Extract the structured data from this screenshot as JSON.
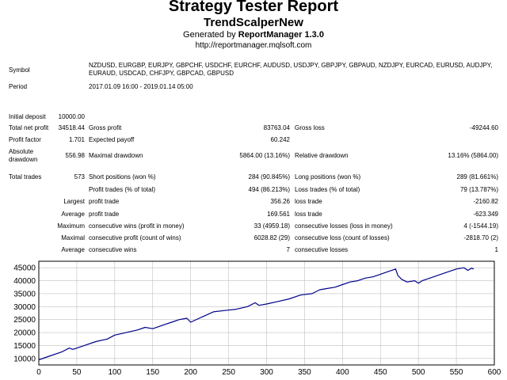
{
  "header": {
    "title": "Strategy Tester Report",
    "subtitle": "TrendScalperNew",
    "generated_prefix": "Generated by ",
    "generated_tool": "ReportManager 1.3.0",
    "url": "http://reportmanager.mqlsoft.com"
  },
  "info": {
    "symbol_label": "Symbol",
    "symbol_value": "NZDUSD, EURGBP, EURJPY, GBPCHF, USDCHF, EURCHF, AUDUSD, USDJPY, GBPJPY, GBPAUD, NZDJPY, EURCAD, EURUSD, AUDJPY, EURAUD, USDCAD, CHFJPY, GBPCAD, GBPUSD",
    "period_label": "Period",
    "period_value": "2017.01.09 16:00 - 2019.01.14 05:00"
  },
  "stats": {
    "initial_deposit_label": "Initial deposit",
    "initial_deposit": "10000.00",
    "total_net_profit_label": "Total net profit",
    "total_net_profit": "34518.44",
    "gross_profit_label": "Gross profit",
    "gross_profit": "83763.04",
    "gross_loss_label": "Gross loss",
    "gross_loss": "-49244.60",
    "profit_factor_label": "Profit factor",
    "profit_factor": "1.701",
    "expected_payoff_label": "Expected payoff",
    "expected_payoff": "60.242",
    "absolute_drawdown_label_1": "Absolute",
    "absolute_drawdown_label_2": "drawdown",
    "absolute_drawdown": "556.98",
    "maximal_drawdown_label": "Maximal drawdown",
    "maximal_drawdown": "5864.00 (13.16%)",
    "relative_drawdown_label": "Relative drawdown",
    "relative_drawdown": "13.16% (5864.00)",
    "total_trades_label": "Total trades",
    "total_trades": "573",
    "short_positions_label": "Short positions (won %)",
    "short_positions": "284 (90.845%)",
    "long_positions_label": "Long positions (won %)",
    "long_positions": "289 (81.661%)",
    "profit_trades_label": "Profit trades (% of total)",
    "profit_trades": "494 (86.213%)",
    "loss_trades_label": "Loss trades (% of total)",
    "loss_trades": "79 (13.787%)",
    "largest_label": "Largest",
    "largest_profit_label": "profit trade",
    "largest_profit": "356.26",
    "largest_loss_label": "loss trade",
    "largest_loss": "-2160.82",
    "average_label": "Average",
    "average_profit_label": "profit trade",
    "average_profit": "169.561",
    "average_loss_label": "loss trade",
    "average_loss": "-623.349",
    "maximum_label": "Maximum",
    "max_cons_wins_label": "consecutive wins (profit in money)",
    "max_cons_wins": "33 (4959.18)",
    "max_cons_losses_label": "consecutive losses (loss in money)",
    "max_cons_losses": "4 (-1544.19)",
    "maximal_label": "Maximal",
    "maximal_cons_profit_label": "consecutive profit (count of wins)",
    "maximal_cons_profit": "6028.82 (29)",
    "maximal_cons_loss_label": "consecutive loss (count of losses)",
    "maximal_cons_loss": "-2818.70 (2)",
    "average2_label": "Average",
    "avg_cons_wins_label": "consecutive wins",
    "avg_cons_wins": "7",
    "avg_cons_losses_label": "consecutive losses",
    "avg_cons_losses": "1"
  },
  "colors": {
    "line": "#00008b",
    "grid": "#c0c0c0",
    "axis": "#000000"
  },
  "chart_data": {
    "type": "line",
    "title": "",
    "xlabel": "",
    "ylabel": "",
    "xlim": [
      0,
      600
    ],
    "ylim": [
      7500,
      47500
    ],
    "xticks": [
      0,
      50,
      100,
      150,
      200,
      250,
      300,
      350,
      400,
      450,
      500,
      550,
      600
    ],
    "yticks": [
      10000,
      15000,
      20000,
      25000,
      30000,
      35000,
      40000,
      45000
    ],
    "grid": true,
    "series": [
      {
        "name": "",
        "x": [
          0,
          15,
          30,
          40,
          45,
          60,
          75,
          90,
          100,
          115,
          130,
          140,
          150,
          165,
          175,
          185,
          195,
          200,
          215,
          230,
          245,
          260,
          275,
          285,
          290,
          300,
          315,
          330,
          345,
          360,
          370,
          380,
          390,
          400,
          410,
          420,
          430,
          440,
          450,
          460,
          470,
          473,
          478,
          485,
          495,
          500,
          505,
          520,
          535,
          550,
          560,
          565,
          570,
          573
        ],
        "y": [
          9500,
          11000,
          12500,
          14000,
          13500,
          15000,
          16500,
          17500,
          19000,
          20000,
          21000,
          22000,
          21500,
          23000,
          24000,
          25000,
          25500,
          24000,
          26000,
          28000,
          28500,
          29000,
          30000,
          31500,
          30500,
          31000,
          32000,
          33000,
          34500,
          35000,
          36500,
          37000,
          37500,
          38500,
          39500,
          40000,
          41000,
          41500,
          42500,
          43500,
          44500,
          42000,
          40500,
          39500,
          40000,
          39000,
          40000,
          41500,
          43000,
          44500,
          45000,
          44000,
          44800,
          44518
        ]
      }
    ]
  }
}
